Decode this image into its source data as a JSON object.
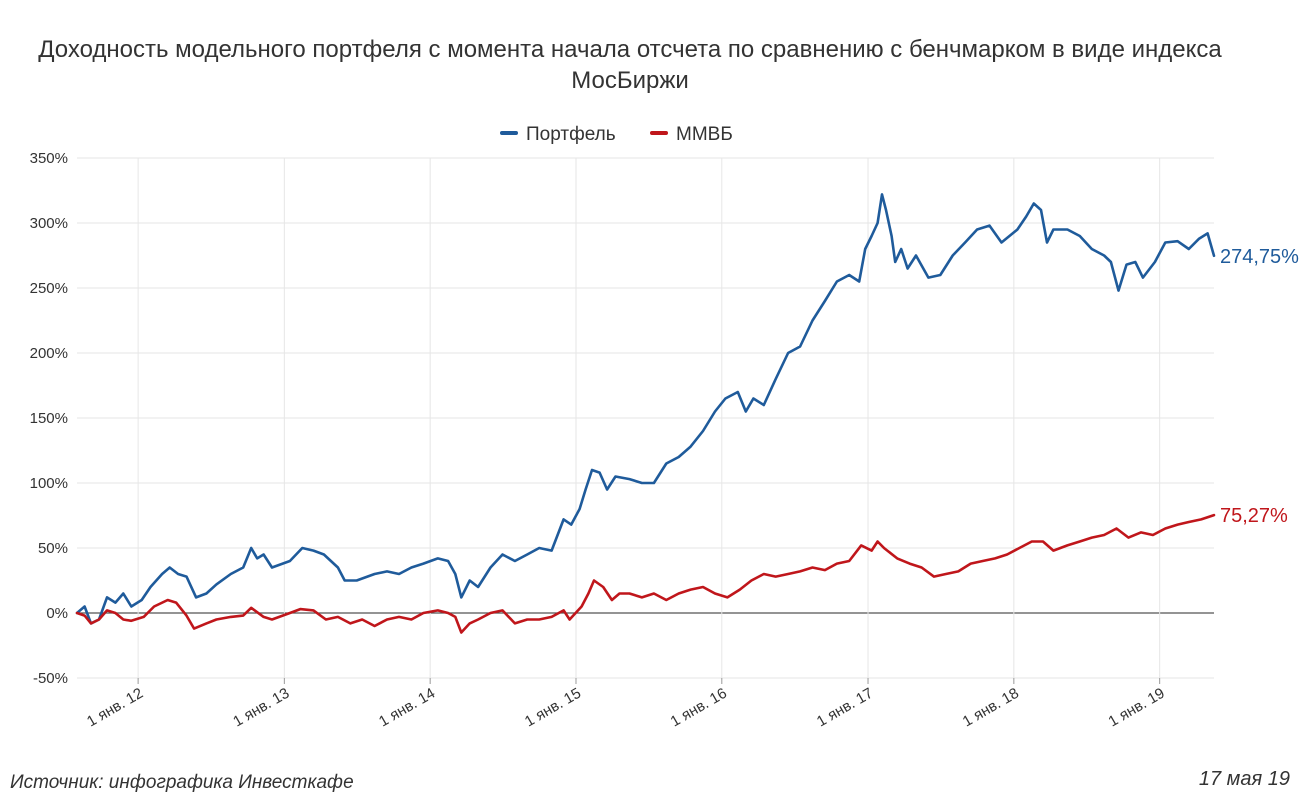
{
  "chart_data": {
    "type": "line",
    "title": "Доходность модельного портфеля с момента начала отсчета по сравнению с бенчмарком в виде индекса МосБиржи",
    "xlabel": "",
    "ylabel": "",
    "x_range": [
      "2011-08-01",
      "2019-05-17"
    ],
    "ylim": [
      -50,
      350
    ],
    "y_ticks": [
      -50,
      0,
      50,
      100,
      150,
      200,
      250,
      300,
      350
    ],
    "y_tick_labels": [
      "-50%",
      "0%",
      "50%",
      "100%",
      "150%",
      "200%",
      "250%",
      "300%",
      "350%"
    ],
    "x_ticks": [
      "2012-01-01",
      "2013-01-01",
      "2014-01-01",
      "2015-01-01",
      "2016-01-01",
      "2017-01-01",
      "2018-01-01",
      "2019-01-01"
    ],
    "x_tick_labels": [
      "1 янв. 12",
      "1 янв. 13",
      "1 янв. 14",
      "1 янв. 15",
      "1 янв. 16",
      "1 янв. 17",
      "1 янв. 18",
      "1 янв. 19"
    ],
    "grid": true,
    "legend_position": "top-center",
    "series": [
      {
        "name": "Портфель",
        "color": "#1f5b9b",
        "end_label": "274,75%",
        "points": [
          [
            "2011-08-01",
            0
          ],
          [
            "2011-08-20",
            5
          ],
          [
            "2011-09-05",
            -8
          ],
          [
            "2011-09-25",
            -5
          ],
          [
            "2011-10-15",
            12
          ],
          [
            "2011-11-05",
            8
          ],
          [
            "2011-11-25",
            15
          ],
          [
            "2011-12-15",
            5
          ],
          [
            "2012-01-10",
            10
          ],
          [
            "2012-02-01",
            20
          ],
          [
            "2012-03-01",
            30
          ],
          [
            "2012-03-20",
            35
          ],
          [
            "2012-04-10",
            30
          ],
          [
            "2012-05-01",
            28
          ],
          [
            "2012-05-25",
            12
          ],
          [
            "2012-06-20",
            15
          ],
          [
            "2012-07-15",
            22
          ],
          [
            "2012-08-20",
            30
          ],
          [
            "2012-09-20",
            35
          ],
          [
            "2012-10-10",
            50
          ],
          [
            "2012-10-25",
            42
          ],
          [
            "2012-11-10",
            45
          ],
          [
            "2012-12-01",
            35
          ],
          [
            "2013-01-15",
            40
          ],
          [
            "2013-02-15",
            50
          ],
          [
            "2013-03-15",
            48
          ],
          [
            "2013-04-10",
            45
          ],
          [
            "2013-05-15",
            35
          ],
          [
            "2013-06-01",
            25
          ],
          [
            "2013-07-01",
            25
          ],
          [
            "2013-08-15",
            30
          ],
          [
            "2013-09-15",
            32
          ],
          [
            "2013-10-15",
            30
          ],
          [
            "2013-11-15",
            35
          ],
          [
            "2013-12-15",
            38
          ],
          [
            "2014-01-20",
            42
          ],
          [
            "2014-02-15",
            40
          ],
          [
            "2014-03-05",
            30
          ],
          [
            "2014-03-20",
            12
          ],
          [
            "2014-04-10",
            25
          ],
          [
            "2014-05-01",
            20
          ],
          [
            "2014-06-01",
            35
          ],
          [
            "2014-07-01",
            45
          ],
          [
            "2014-08-01",
            40
          ],
          [
            "2014-09-01",
            45
          ],
          [
            "2014-10-01",
            50
          ],
          [
            "2014-11-01",
            48
          ],
          [
            "2014-12-01",
            72
          ],
          [
            "2014-12-20",
            68
          ],
          [
            "2015-01-10",
            80
          ],
          [
            "2015-01-25",
            95
          ],
          [
            "2015-02-10",
            110
          ],
          [
            "2015-03-01",
            108
          ],
          [
            "2015-03-20",
            95
          ],
          [
            "2015-04-10",
            105
          ],
          [
            "2015-05-15",
            103
          ],
          [
            "2015-06-15",
            100
          ],
          [
            "2015-07-15",
            100
          ],
          [
            "2015-08-15",
            115
          ],
          [
            "2015-09-15",
            120
          ],
          [
            "2015-10-15",
            128
          ],
          [
            "2015-11-15",
            140
          ],
          [
            "2015-12-15",
            155
          ],
          [
            "2016-01-10",
            165
          ],
          [
            "2016-02-10",
            170
          ],
          [
            "2016-03-01",
            155
          ],
          [
            "2016-03-20",
            165
          ],
          [
            "2016-04-15",
            160
          ],
          [
            "2016-05-15",
            180
          ],
          [
            "2016-06-15",
            200
          ],
          [
            "2016-07-15",
            205
          ],
          [
            "2016-08-15",
            225
          ],
          [
            "2016-09-15",
            240
          ],
          [
            "2016-10-15",
            255
          ],
          [
            "2016-11-15",
            260
          ],
          [
            "2016-12-10",
            255
          ],
          [
            "2016-12-25",
            280
          ],
          [
            "2017-01-10",
            290
          ],
          [
            "2017-01-25",
            300
          ],
          [
            "2017-02-05",
            322
          ],
          [
            "2017-02-15",
            310
          ],
          [
            "2017-03-01",
            290
          ],
          [
            "2017-03-10",
            270
          ],
          [
            "2017-03-25",
            280
          ],
          [
            "2017-04-10",
            265
          ],
          [
            "2017-05-01",
            275
          ],
          [
            "2017-06-01",
            258
          ],
          [
            "2017-07-01",
            260
          ],
          [
            "2017-08-01",
            275
          ],
          [
            "2017-09-01",
            285
          ],
          [
            "2017-10-01",
            295
          ],
          [
            "2017-11-01",
            298
          ],
          [
            "2017-12-01",
            285
          ],
          [
            "2018-01-10",
            295
          ],
          [
            "2018-02-01",
            305
          ],
          [
            "2018-02-20",
            315
          ],
          [
            "2018-03-10",
            310
          ],
          [
            "2018-03-25",
            285
          ],
          [
            "2018-04-10",
            295
          ],
          [
            "2018-05-15",
            295
          ],
          [
            "2018-06-15",
            290
          ],
          [
            "2018-07-15",
            280
          ],
          [
            "2018-08-15",
            275
          ],
          [
            "2018-09-01",
            270
          ],
          [
            "2018-09-20",
            248
          ],
          [
            "2018-10-10",
            268
          ],
          [
            "2018-11-01",
            270
          ],
          [
            "2018-11-20",
            258
          ],
          [
            "2018-12-20",
            270
          ],
          [
            "2019-01-15",
            285
          ],
          [
            "2019-02-15",
            286
          ],
          [
            "2019-03-15",
            280
          ],
          [
            "2019-04-10",
            288
          ],
          [
            "2019-05-01",
            292
          ],
          [
            "2019-05-17",
            274.75
          ]
        ]
      },
      {
        "name": "ММВБ",
        "color": "#c0161b",
        "end_label": "75,27%",
        "points": [
          [
            "2011-08-01",
            0
          ],
          [
            "2011-08-20",
            -2
          ],
          [
            "2011-09-05",
            -8
          ],
          [
            "2011-09-25",
            -5
          ],
          [
            "2011-10-15",
            2
          ],
          [
            "2011-11-05",
            0
          ],
          [
            "2011-11-25",
            -5
          ],
          [
            "2011-12-15",
            -6
          ],
          [
            "2012-01-15",
            -3
          ],
          [
            "2012-02-10",
            5
          ],
          [
            "2012-03-15",
            10
          ],
          [
            "2012-04-05",
            8
          ],
          [
            "2012-05-01",
            -2
          ],
          [
            "2012-05-20",
            -12
          ],
          [
            "2012-06-20",
            -8
          ],
          [
            "2012-07-15",
            -5
          ],
          [
            "2012-08-20",
            -3
          ],
          [
            "2012-09-20",
            -2
          ],
          [
            "2012-10-10",
            4
          ],
          [
            "2012-11-10",
            -3
          ],
          [
            "2012-12-01",
            -5
          ],
          [
            "2013-01-15",
            0
          ],
          [
            "2013-02-10",
            3
          ],
          [
            "2013-03-15",
            2
          ],
          [
            "2013-04-15",
            -5
          ],
          [
            "2013-05-15",
            -3
          ],
          [
            "2013-06-15",
            -8
          ],
          [
            "2013-07-15",
            -5
          ],
          [
            "2013-08-15",
            -10
          ],
          [
            "2013-09-15",
            -5
          ],
          [
            "2013-10-15",
            -3
          ],
          [
            "2013-11-15",
            -5
          ],
          [
            "2013-12-15",
            0
          ],
          [
            "2014-01-20",
            2
          ],
          [
            "2014-02-15",
            0
          ],
          [
            "2014-03-05",
            -3
          ],
          [
            "2014-03-20",
            -15
          ],
          [
            "2014-04-10",
            -8
          ],
          [
            "2014-05-01",
            -5
          ],
          [
            "2014-06-01",
            0
          ],
          [
            "2014-07-01",
            2
          ],
          [
            "2014-08-01",
            -8
          ],
          [
            "2014-09-01",
            -5
          ],
          [
            "2014-10-01",
            -5
          ],
          [
            "2014-11-01",
            -3
          ],
          [
            "2014-12-01",
            2
          ],
          [
            "2014-12-16",
            -5
          ],
          [
            "2015-01-15",
            5
          ],
          [
            "2015-02-01",
            15
          ],
          [
            "2015-02-15",
            25
          ],
          [
            "2015-03-10",
            20
          ],
          [
            "2015-04-01",
            10
          ],
          [
            "2015-04-20",
            15
          ],
          [
            "2015-05-15",
            15
          ],
          [
            "2015-06-15",
            12
          ],
          [
            "2015-07-15",
            15
          ],
          [
            "2015-08-15",
            10
          ],
          [
            "2015-09-15",
            15
          ],
          [
            "2015-10-15",
            18
          ],
          [
            "2015-11-15",
            20
          ],
          [
            "2015-12-15",
            15
          ],
          [
            "2016-01-15",
            12
          ],
          [
            "2016-02-15",
            18
          ],
          [
            "2016-03-15",
            25
          ],
          [
            "2016-04-15",
            30
          ],
          [
            "2016-05-15",
            28
          ],
          [
            "2016-06-15",
            30
          ],
          [
            "2016-07-15",
            32
          ],
          [
            "2016-08-15",
            35
          ],
          [
            "2016-09-15",
            33
          ],
          [
            "2016-10-15",
            38
          ],
          [
            "2016-11-15",
            40
          ],
          [
            "2016-12-15",
            52
          ],
          [
            "2017-01-10",
            48
          ],
          [
            "2017-01-25",
            55
          ],
          [
            "2017-02-10",
            50
          ],
          [
            "2017-03-15",
            42
          ],
          [
            "2017-04-15",
            38
          ],
          [
            "2017-05-15",
            35
          ],
          [
            "2017-06-15",
            28
          ],
          [
            "2017-07-15",
            30
          ],
          [
            "2017-08-15",
            32
          ],
          [
            "2017-09-15",
            38
          ],
          [
            "2017-10-15",
            40
          ],
          [
            "2017-11-15",
            42
          ],
          [
            "2017-12-15",
            45
          ],
          [
            "2018-01-15",
            50
          ],
          [
            "2018-02-15",
            55
          ],
          [
            "2018-03-15",
            55
          ],
          [
            "2018-04-10",
            48
          ],
          [
            "2018-05-15",
            52
          ],
          [
            "2018-06-15",
            55
          ],
          [
            "2018-07-15",
            58
          ],
          [
            "2018-08-15",
            60
          ],
          [
            "2018-09-15",
            65
          ],
          [
            "2018-10-15",
            58
          ],
          [
            "2018-11-15",
            62
          ],
          [
            "2018-12-15",
            60
          ],
          [
            "2019-01-15",
            65
          ],
          [
            "2019-02-15",
            68
          ],
          [
            "2019-03-15",
            70
          ],
          [
            "2019-04-15",
            72
          ],
          [
            "2019-05-17",
            75.27
          ]
        ]
      }
    ]
  },
  "footer": {
    "source": "Источник: инфографика Инвесткафе",
    "date": "17 мая 19"
  }
}
